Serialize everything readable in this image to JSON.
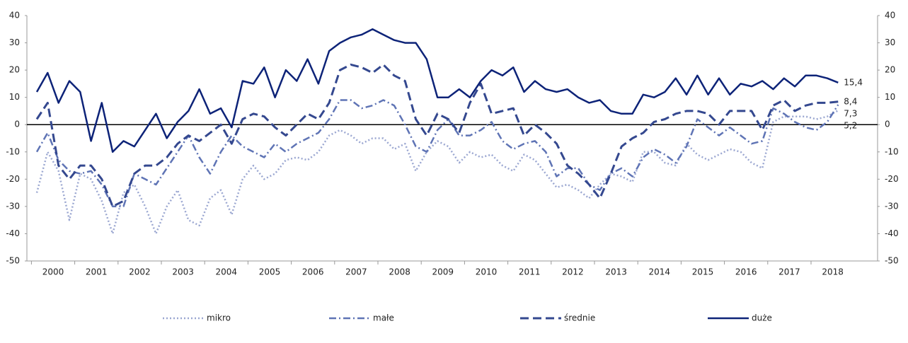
{
  "chart_data": {
    "type": "line",
    "categories": [
      "2000",
      null,
      null,
      null,
      "2001",
      null,
      null,
      null,
      "2002",
      null,
      null,
      null,
      "2003",
      null,
      null,
      null,
      "2004",
      null,
      null,
      null,
      "2005",
      null,
      null,
      null,
      "2006",
      null,
      null,
      null,
      "2007",
      null,
      null,
      null,
      "2008",
      null,
      null,
      null,
      "2009",
      null,
      null,
      null,
      "2010",
      null,
      null,
      null,
      "2011",
      null,
      null,
      null,
      "2012",
      null,
      null,
      null,
      "2013",
      null,
      null,
      null,
      "2014",
      null,
      null,
      null,
      "2015",
      null,
      null,
      null,
      "2016",
      null,
      null,
      null,
      "2017",
      null,
      null,
      null,
      "2018",
      null,
      null
    ],
    "ylim": [
      -50,
      40
    ],
    "yticks": [
      -50,
      -40,
      -30,
      -20,
      -10,
      0,
      10,
      20,
      30,
      40
    ],
    "y2lim": [
      -50,
      40
    ],
    "y2ticks": [
      -50,
      -40,
      -30,
      -20,
      -10,
      0,
      10,
      20,
      30,
      40
    ],
    "legend": "bottom",
    "series": [
      {
        "name": "mikro",
        "color": "#9ba7d1",
        "dash": "dotted",
        "values": [
          -25,
          -10,
          -17,
          -35,
          -18,
          -20,
          -28,
          -40,
          -25,
          -22,
          -30,
          -40,
          -30,
          -24,
          -35,
          -37,
          -27,
          -24,
          -33,
          -20,
          -15,
          -20,
          -18,
          -13,
          -12,
          -13,
          -10,
          -4,
          -2,
          -4,
          -7,
          -5,
          -5,
          -9,
          -7,
          -17,
          -10,
          -6,
          -8,
          -14,
          -10,
          -12,
          -11,
          -15,
          -17,
          -11,
          -13,
          -18,
          -23,
          -22,
          -24,
          -27,
          -22,
          -18,
          -19,
          -21,
          -10,
          -10,
          -14,
          -15,
          -7,
          -11,
          -13,
          -11,
          -9,
          -10,
          -14,
          -16,
          1,
          3,
          3,
          3,
          2,
          3,
          5.2
        ],
        "value_labels": [
          null,
          null,
          null,
          null,
          null,
          null,
          null,
          null,
          null,
          null,
          null,
          null,
          null,
          null,
          null,
          null,
          null,
          null,
          null,
          null,
          null,
          null,
          null,
          null,
          null,
          null,
          null,
          null,
          null,
          null,
          null,
          null,
          null,
          null,
          null,
          null,
          null,
          null,
          null,
          null,
          null,
          null,
          null,
          null,
          null,
          null,
          null,
          null,
          null,
          null,
          null,
          null,
          null,
          null,
          null,
          null,
          null,
          null,
          null,
          null,
          null,
          null,
          null,
          null,
          null,
          null,
          null,
          null,
          null,
          null,
          null,
          null,
          null,
          null,
          "5,2"
        ]
      },
      {
        "name": "małe",
        "color": "#5f74b5",
        "dash": "dashdot",
        "values": [
          -10,
          -3,
          -13,
          -17,
          -18,
          -17,
          -22,
          -30,
          -30,
          -18,
          -20,
          -22,
          -16,
          -10,
          -4,
          -12,
          -18,
          -10,
          -4,
          -8,
          -10,
          -12,
          -7,
          -10,
          -7,
          -5,
          -3,
          2,
          9,
          9,
          6,
          7,
          9,
          7,
          0,
          -8,
          -10,
          -2,
          2,
          -4,
          -4,
          -2,
          1,
          -6,
          -9,
          -7,
          -6,
          -10,
          -19,
          -16,
          -16,
          -22,
          -24,
          -18,
          -16,
          -19,
          -12,
          -9,
          -11,
          -14,
          -8,
          2,
          -1,
          -4,
          -1,
          -4,
          -7,
          -6,
          6,
          4,
          1,
          -1,
          -2,
          1,
          7.3
        ],
        "value_labels": [
          null,
          null,
          null,
          null,
          null,
          null,
          null,
          null,
          null,
          null,
          null,
          null,
          null,
          null,
          null,
          null,
          null,
          null,
          null,
          null,
          null,
          null,
          null,
          null,
          null,
          null,
          null,
          null,
          null,
          null,
          null,
          null,
          null,
          null,
          null,
          null,
          null,
          null,
          null,
          null,
          null,
          null,
          null,
          null,
          null,
          null,
          null,
          null,
          null,
          null,
          null,
          null,
          null,
          null,
          null,
          null,
          null,
          null,
          null,
          null,
          null,
          null,
          null,
          null,
          null,
          null,
          null,
          null,
          null,
          null,
          null,
          null,
          null,
          null,
          "7,3"
        ]
      },
      {
        "name": "średnie",
        "color": "#34488f",
        "dash": "dashed",
        "values": [
          2,
          8,
          -15,
          -20,
          -15,
          -15,
          -20,
          -30,
          -28,
          -18,
          -15,
          -15,
          -12,
          -7,
          -4,
          -6,
          -3,
          0,
          -7,
          2,
          4,
          3,
          -1,
          -4,
          0,
          4,
          2,
          8,
          20,
          22,
          21,
          19,
          22,
          18,
          16,
          2,
          -4,
          4,
          2,
          -3,
          8,
          15,
          4,
          5,
          6,
          -4,
          0,
          -3,
          -7,
          -15,
          -18,
          -22,
          -27,
          -18,
          -8,
          -5,
          -3,
          1,
          2,
          4,
          5,
          5,
          4,
          0,
          5,
          5,
          5,
          -2,
          7,
          9,
          5,
          7,
          8,
          8,
          8.4
        ],
        "value_labels": [
          null,
          null,
          null,
          null,
          null,
          null,
          null,
          null,
          null,
          null,
          null,
          null,
          null,
          null,
          null,
          null,
          null,
          null,
          null,
          null,
          null,
          null,
          null,
          null,
          null,
          null,
          null,
          null,
          null,
          null,
          null,
          null,
          null,
          null,
          null,
          null,
          null,
          null,
          null,
          null,
          null,
          null,
          null,
          null,
          null,
          null,
          null,
          null,
          null,
          null,
          null,
          null,
          null,
          null,
          null,
          null,
          null,
          null,
          null,
          null,
          null,
          null,
          null,
          null,
          null,
          null,
          null,
          null,
          null,
          null,
          null,
          null,
          null,
          null,
          "8,4"
        ]
      },
      {
        "name": "duże",
        "color": "#0d2378",
        "dash": "solid",
        "values": [
          12,
          19,
          8,
          16,
          12,
          -6,
          8,
          -10,
          -6,
          -8,
          -2,
          4,
          -5,
          1,
          5,
          13,
          4,
          6,
          -1,
          16,
          15,
          21,
          10,
          20,
          16,
          24,
          15,
          27,
          30,
          32,
          33,
          35,
          33,
          31,
          30,
          30,
          24,
          10,
          10,
          13,
          10,
          16,
          20,
          18,
          21,
          12,
          16,
          13,
          12,
          13,
          10,
          8,
          9,
          5,
          4,
          4,
          11,
          10,
          12,
          17,
          11,
          18,
          11,
          17,
          11,
          15,
          14,
          16,
          13,
          17,
          14,
          18,
          18,
          17,
          15.4
        ],
        "value_labels": [
          null,
          null,
          null,
          null,
          null,
          null,
          null,
          null,
          null,
          null,
          null,
          null,
          null,
          null,
          null,
          null,
          null,
          null,
          null,
          null,
          null,
          null,
          null,
          null,
          null,
          null,
          null,
          null,
          null,
          null,
          null,
          null,
          null,
          null,
          null,
          null,
          null,
          null,
          null,
          null,
          null,
          null,
          null,
          null,
          null,
          null,
          null,
          null,
          null,
          null,
          null,
          null,
          null,
          null,
          null,
          null,
          null,
          null,
          null,
          null,
          null,
          null,
          null,
          null,
          null,
          null,
          null,
          null,
          null,
          null,
          null,
          null,
          null,
          null,
          "15,4"
        ]
      }
    ]
  }
}
